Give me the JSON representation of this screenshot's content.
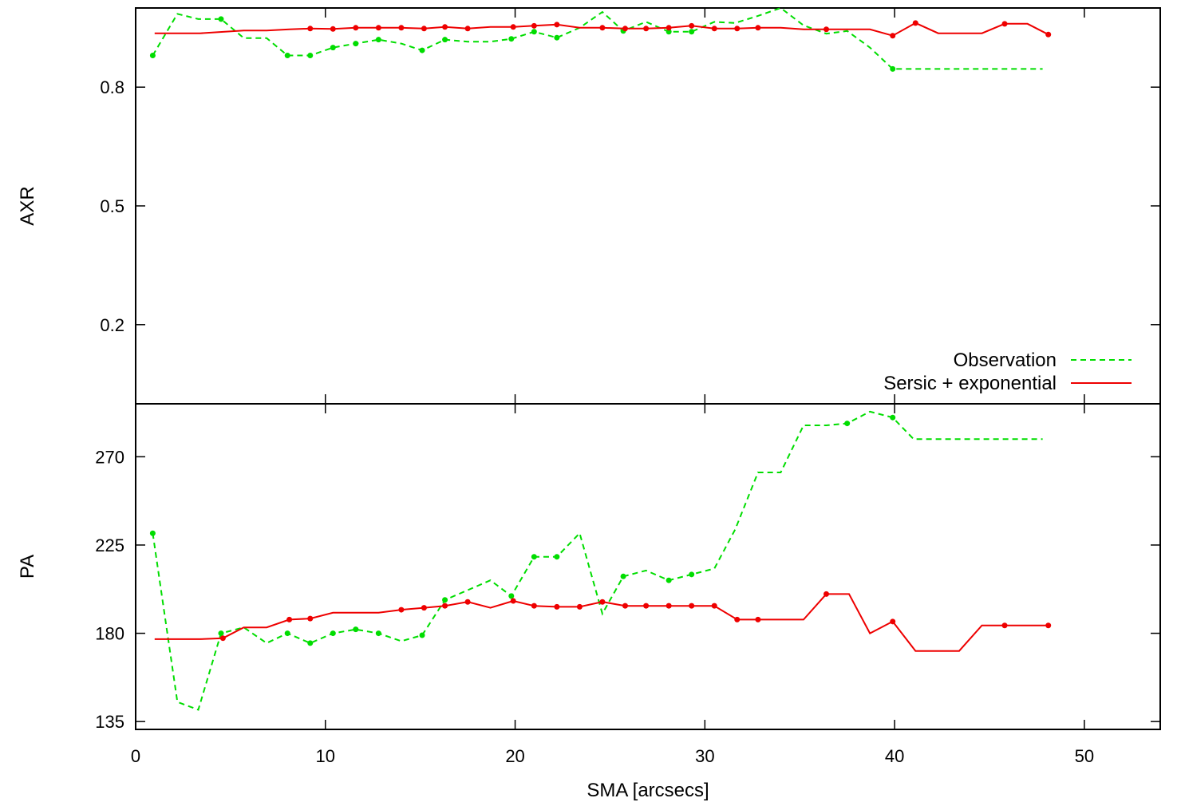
{
  "chart_data": {
    "type": "line",
    "xlabel": "SMA [arcsecs]",
    "xlim": [
      0,
      54
    ],
    "xticks": [
      0,
      10,
      20,
      30,
      40,
      50
    ],
    "legend_position": "bottom-right of top panel",
    "grid": false,
    "colors": {
      "observation": "#00dd00",
      "model": "#ee0000"
    },
    "panels": [
      {
        "ylabel": "AXR",
        "ylim": [
          0,
          1
        ],
        "yticks": [
          0.2,
          0.5,
          0.8
        ],
        "series": [
          {
            "name": "Observation",
            "style": "dashed",
            "x": [
              0.9,
              2.2,
              3.3,
              4.5,
              5.7,
              6.9,
              8.0,
              9.2,
              10.4,
              11.6,
              12.8,
              14.0,
              15.1,
              16.3,
              17.5,
              18.7,
              19.8,
              21.0,
              22.2,
              23.4,
              24.6,
              25.7,
              26.9,
              28.1,
              29.3,
              30.5,
              31.6,
              32.8,
              34.0,
              35.2,
              36.4,
              37.5,
              38.7,
              39.9,
              47.8
            ],
            "y": [
              0.88,
              0.985,
              0.972,
              0.972,
              0.924,
              0.924,
              0.88,
              0.88,
              0.9,
              0.91,
              0.92,
              0.91,
              0.893,
              0.92,
              0.915,
              0.915,
              0.922,
              0.94,
              0.925,
              0.95,
              0.99,
              0.942,
              0.965,
              0.94,
              0.94,
              0.965,
              0.962,
              0.98,
              1.0,
              0.956,
              0.935,
              0.942,
              0.9,
              0.846,
              0.846
            ],
            "markers_x": [
              0.9,
              4.5,
              8.0,
              9.2,
              10.4,
              11.6,
              12.8,
              15.1,
              16.3,
              19.8,
              21.0,
              22.2,
              25.7,
              28.1,
              29.3,
              39.9
            ]
          },
          {
            "name": "Sersic + exponential",
            "style": "solid",
            "x": [
              1.0,
              3.4,
              5.7,
              6.9,
              8.1,
              9.2,
              10.4,
              11.6,
              12.8,
              14.0,
              15.2,
              16.3,
              17.5,
              18.7,
              19.9,
              21.0,
              22.2,
              23.4,
              24.6,
              25.8,
              26.9,
              28.1,
              29.3,
              30.5,
              31.7,
              32.8,
              34.0,
              35.2,
              36.4,
              37.6,
              38.7,
              39.9,
              41.1,
              42.3,
              43.4,
              44.6,
              45.8,
              47.0,
              48.1
            ],
            "y": [
              0.936,
              0.936,
              0.943,
              0.943,
              0.946,
              0.948,
              0.947,
              0.95,
              0.95,
              0.95,
              0.948,
              0.952,
              0.948,
              0.952,
              0.952,
              0.955,
              0.958,
              0.95,
              0.95,
              0.948,
              0.948,
              0.95,
              0.955,
              0.948,
              0.948,
              0.95,
              0.95,
              0.946,
              0.946,
              0.946,
              0.946,
              0.93,
              0.962,
              0.936,
              0.936,
              0.936,
              0.96,
              0.96,
              0.933
            ],
            "markers_x": [
              9.2,
              10.4,
              11.6,
              12.8,
              14.0,
              15.2,
              16.3,
              17.5,
              19.9,
              21.0,
              22.2,
              24.6,
              25.8,
              26.9,
              28.1,
              29.3,
              30.5,
              31.7,
              32.8,
              36.4,
              39.9,
              41.1,
              45.8,
              48.1
            ]
          }
        ]
      },
      {
        "ylabel": "PA",
        "ylim": [
          131,
          297
        ],
        "yticks": [
          135,
          180,
          225,
          270
        ],
        "series": [
          {
            "name": "Observation",
            "style": "dashed",
            "x": [
              0.9,
              2.2,
              3.3,
              4.5,
              5.7,
              6.9,
              8.0,
              9.2,
              10.4,
              11.6,
              12.8,
              14.0,
              15.1,
              16.3,
              17.5,
              18.7,
              19.8,
              21.0,
              22.2,
              23.4,
              24.6,
              25.7,
              26.9,
              28.1,
              29.3,
              30.5,
              31.6,
              32.8,
              34.0,
              35.2,
              36.4,
              37.5,
              38.7,
              39.9,
              41.0,
              47.8
            ],
            "y": [
              231,
              145,
              141,
              180,
              183,
              175,
              180,
              175,
              180,
              182,
              180,
              176,
              179,
              197,
              202,
              207,
              199,
              219,
              219,
              231,
              190,
              209,
              212,
              207,
              210,
              213,
              233,
              262,
              262,
              286,
              286,
              287,
              293,
              290,
              279,
              279
            ],
            "markers_x": [
              0.9,
              4.5,
              8.0,
              9.2,
              10.4,
              11.6,
              12.8,
              15.1,
              16.3,
              19.8,
              21.0,
              22.2,
              25.7,
              28.1,
              29.3,
              37.5,
              39.9
            ]
          },
          {
            "name": "Sersic + exponential",
            "style": "solid",
            "x": [
              1.0,
              3.4,
              4.6,
              5.7,
              6.9,
              8.1,
              9.2,
              10.4,
              11.6,
              12.8,
              14.0,
              15.2,
              16.3,
              17.5,
              18.7,
              19.9,
              21.0,
              22.2,
              23.4,
              24.6,
              25.8,
              26.9,
              28.1,
              29.3,
              30.5,
              31.7,
              32.8,
              34.0,
              35.2,
              36.4,
              37.6,
              38.7,
              39.9,
              41.1,
              42.3,
              43.4,
              44.6,
              45.8,
              47.0,
              48.1
            ],
            "y": [
              177,
              177,
              177.5,
              183,
              183,
              187,
              187.5,
              190.5,
              190.5,
              190.5,
              192,
              193,
              194,
              196,
              193,
              196.5,
              194,
              193.5,
              193.5,
              196,
              194,
              194,
              194,
              194,
              194,
              187,
              187,
              187,
              187,
              200,
              200,
              180,
              186,
              171,
              171,
              171,
              184,
              184,
              184,
              184
            ],
            "markers_x": [
              4.6,
              8.1,
              9.2,
              14.0,
              15.2,
              16.3,
              17.5,
              19.9,
              21.0,
              22.2,
              23.4,
              24.6,
              25.8,
              26.9,
              28.1,
              29.3,
              30.5,
              31.7,
              32.8,
              36.4,
              39.9,
              45.8,
              48.1
            ]
          }
        ]
      }
    ]
  }
}
